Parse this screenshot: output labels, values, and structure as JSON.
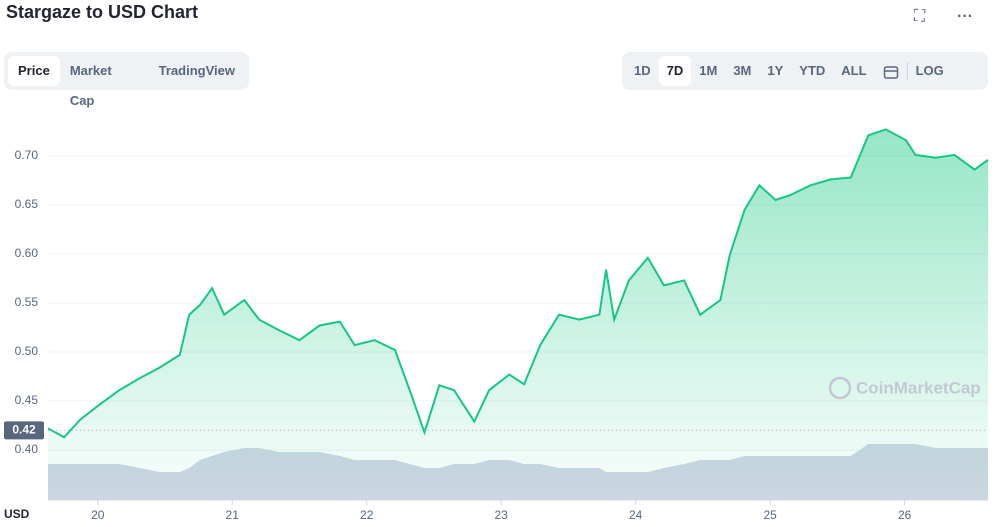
{
  "page": {
    "title": "Stargaze to USD Chart",
    "tabs": [
      "Price",
      "Market Cap",
      "TradingView"
    ],
    "ranges": [
      "1D",
      "7D",
      "1M",
      "3M",
      "1Y",
      "YTD",
      "ALL"
    ],
    "log": "LOG"
  },
  "chart_data": {
    "type": "line",
    "y_label": "USD",
    "watermark": "CoinMarketCap",
    "current_price": 0.42,
    "x": [
      19.63,
      19.75,
      19.87,
      20.01,
      20.16,
      20.31,
      20.46,
      20.61,
      20.68,
      20.76,
      20.85,
      20.94,
      21.09,
      21.2,
      21.35,
      21.5,
      21.65,
      21.8,
      21.91,
      22.06,
      22.21,
      22.32,
      22.43,
      22.54,
      22.65,
      22.8,
      22.91,
      23.06,
      23.17,
      23.29,
      23.43,
      23.58,
      23.73,
      23.78,
      23.84,
      23.95,
      24.09,
      24.21,
      24.36,
      24.48,
      24.63,
      24.7,
      24.81,
      24.92,
      25.04,
      25.15,
      25.3,
      25.45,
      25.6,
      25.73,
      25.86,
      26.01,
      26.08,
      26.23,
      26.37,
      26.52,
      26.62
    ],
    "series": [
      {
        "color": "#16c784",
        "values": [
          0.422,
          0.413,
          0.431,
          0.446,
          0.461,
          0.473,
          0.484,
          0.497,
          0.538,
          0.548,
          0.565,
          0.538,
          0.553,
          0.533,
          0.522,
          0.512,
          0.527,
          0.531,
          0.507,
          0.512,
          0.502,
          0.461,
          0.418,
          0.466,
          0.461,
          0.429,
          0.461,
          0.477,
          0.467,
          0.507,
          0.538,
          0.533,
          0.538,
          0.584,
          0.533,
          0.573,
          0.596,
          0.568,
          0.573,
          0.538,
          0.553,
          0.599,
          0.645,
          0.67,
          0.655,
          0.66,
          0.67,
          0.676,
          0.678,
          0.721,
          0.727,
          0.716,
          0.701,
          0.698,
          0.701,
          0.686,
          0.696
        ]
      },
      {
        "color": "#cfd6e4",
        "axis": "y2",
        "values": [
          9,
          9,
          9,
          9,
          9,
          8,
          7,
          7,
          8,
          10,
          11,
          12,
          13,
          13,
          12,
          12,
          12,
          11,
          10,
          10,
          10,
          9,
          8,
          8,
          9,
          9,
          10,
          10,
          9,
          9,
          8,
          8,
          8,
          7,
          7,
          7,
          7,
          8,
          9,
          10,
          10,
          10,
          11,
          11,
          11,
          11,
          11,
          11,
          11,
          14,
          14,
          14,
          14,
          13,
          13,
          13,
          13
        ]
      }
    ],
    "xlim": [
      19.63,
      26.62
    ],
    "xticks": [
      20,
      21,
      22,
      23,
      24,
      25,
      26
    ],
    "ylim": [
      0.349,
      0.757
    ],
    "yticks": [
      {
        "value": 0.4,
        "label": "0.40"
      },
      0.45,
      {
        "value": 0.5,
        "label": "0.50"
      },
      0.55,
      {
        "value": 0.6,
        "label": "0.60"
      },
      0.65,
      {
        "value": 0.7,
        "label": "0.70"
      }
    ],
    "y2lim": [
      0,
      100
    ],
    "grid": true
  }
}
